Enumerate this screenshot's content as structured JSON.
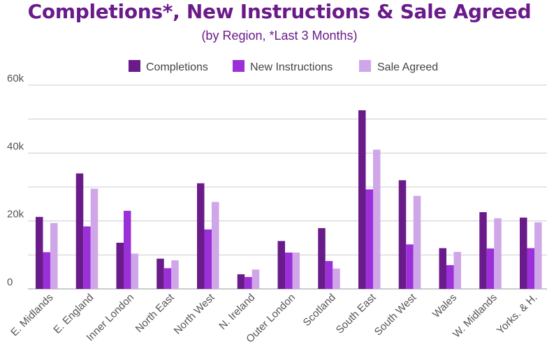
{
  "chart_data": {
    "type": "bar",
    "title": "Completions*, New Instructions & Sale Agreed",
    "subtitle": "(by Region, *Last 3 Months)",
    "xlabel": "",
    "ylabel": "",
    "ylim": [
      0,
      60000
    ],
    "yticks": [
      0,
      20000,
      40000,
      60000
    ],
    "ytick_labels": [
      "0",
      "20k",
      "40k",
      "60k"
    ],
    "grid": true,
    "legend_position": "top-center",
    "categories": [
      "E. Midlands",
      "E. England",
      "Inner London",
      "North East",
      "North West",
      "N. Ireland",
      "Outer London",
      "Scotland",
      "South East",
      "South West",
      "Wales",
      "W. Midlands",
      "Yorks. & H."
    ],
    "series": [
      {
        "name": "Completions",
        "color": "#6a1b8a",
        "values": [
          21200,
          34000,
          13600,
          8900,
          31100,
          4300,
          14100,
          17900,
          52600,
          32000,
          12000,
          22600,
          21000
        ]
      },
      {
        "name": "New Instructions",
        "color": "#9b30d9",
        "values": [
          10800,
          18400,
          23000,
          6100,
          17500,
          3500,
          10700,
          8200,
          29300,
          13100,
          7000,
          11900,
          12000
        ]
      },
      {
        "name": "Sale Agreed",
        "color": "#cfa6e8",
        "values": [
          19400,
          29500,
          10400,
          8400,
          25600,
          5700,
          10700,
          6000,
          41000,
          27400,
          10900,
          20800,
          19600
        ]
      }
    ]
  }
}
